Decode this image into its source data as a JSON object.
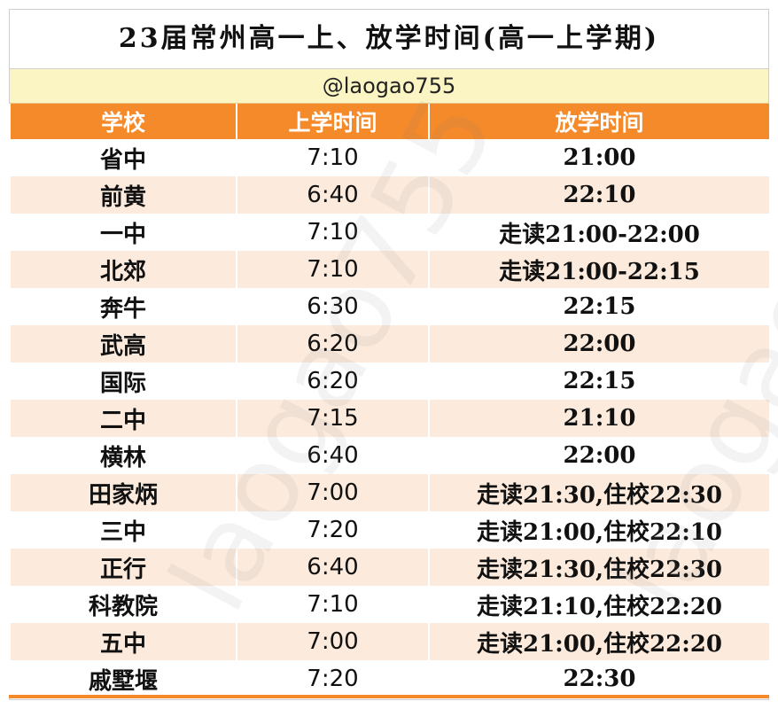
{
  "title": "23届常州高一上、放学时间(高一上学期)",
  "handle": "@laogao755",
  "columns": [
    "学校",
    "上学时间",
    "放学时间"
  ],
  "rows": [
    {
      "school": "省中",
      "start": "7:10",
      "end": "21:00"
    },
    {
      "school": "前黄",
      "start": "6:40",
      "end": "22:10"
    },
    {
      "school": "一中",
      "start": "7:10",
      "end": "走读21:00-22:00"
    },
    {
      "school": "北郊",
      "start": "7:10",
      "end": "走读21:00-22:15"
    },
    {
      "school": "奔牛",
      "start": "6:30",
      "end": "22:15"
    },
    {
      "school": "武高",
      "start": "6:20",
      "end": "22:00"
    },
    {
      "school": "国际",
      "start": "6:20",
      "end": "22:15"
    },
    {
      "school": "二中",
      "start": "7:15",
      "end": "21:10"
    },
    {
      "school": "横林",
      "start": "6:40",
      "end": "22:00"
    },
    {
      "school": "田家炳",
      "start": "7:00",
      "end": "走读21:30,住校22:30"
    },
    {
      "school": "三中",
      "start": "7:20",
      "end": "走读21:00,住校22:10"
    },
    {
      "school": "正行",
      "start": "6:40",
      "end": "走读21:30,住校22:30"
    },
    {
      "school": "科教院",
      "start": "7:10",
      "end": "走读21:10,住校22:20"
    },
    {
      "school": "五中",
      "start": "7:00",
      "end": "走读21:00,住校22:20"
    },
    {
      "school": "戚墅堰",
      "start": "7:20",
      "end": "22:30"
    }
  ],
  "watermark": "laogao755",
  "colors": {
    "header": "#f58a2b",
    "band": "#fcebdc",
    "handle_bg": "#fbf5c3"
  }
}
